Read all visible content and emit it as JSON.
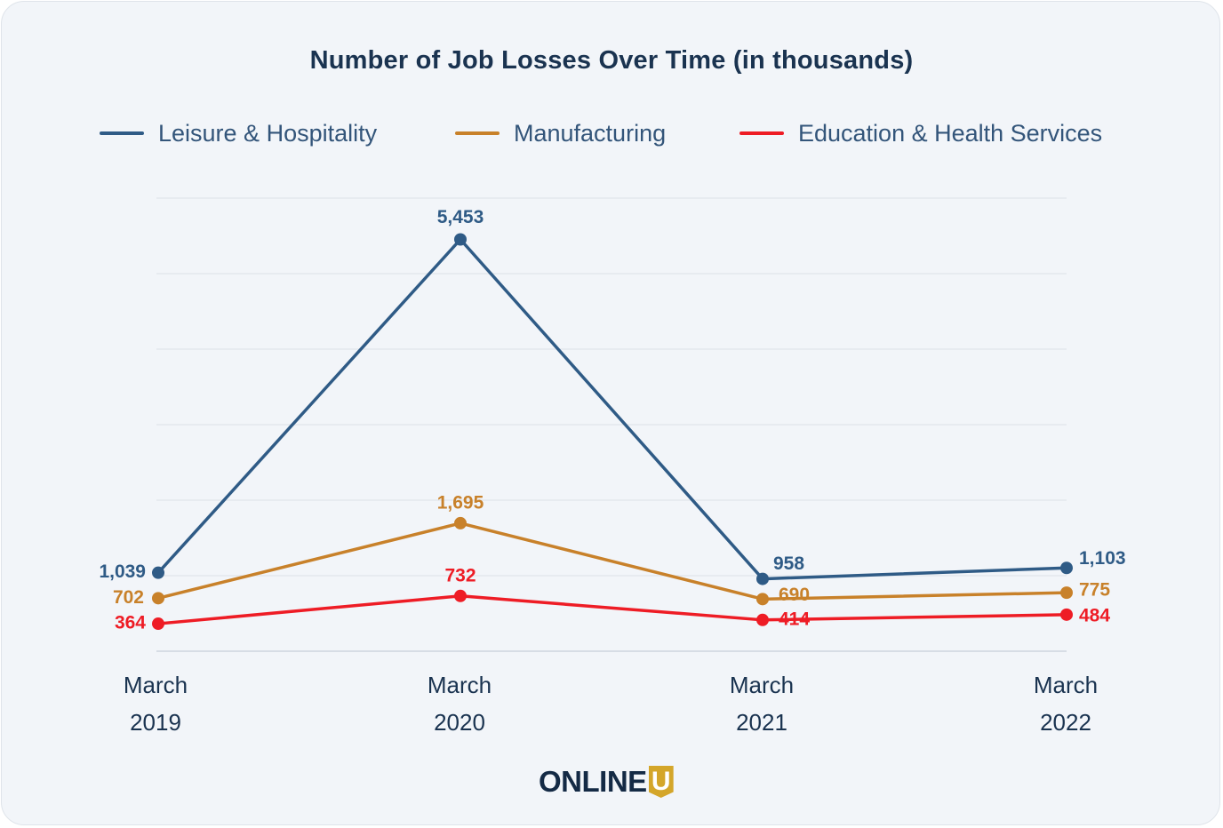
{
  "chart_data": {
    "type": "line",
    "title": "Number of Job Losses Over Time (in thousands)",
    "categories": [
      [
        "March",
        "2019"
      ],
      [
        "March",
        "2020"
      ],
      [
        "March",
        "2021"
      ],
      [
        "March",
        "2022"
      ]
    ],
    "series": [
      {
        "name": "Leisure & Hospitality",
        "color": "#2f5b86",
        "values": [
          1039,
          5453,
          958,
          1103
        ],
        "labels": [
          "1,039",
          "5,453",
          "958",
          "1,103"
        ]
      },
      {
        "name": "Manufacturing",
        "color": "#c8812a",
        "values": [
          702,
          1695,
          690,
          775
        ],
        "labels": [
          "702",
          "1,695",
          "690",
          "775"
        ]
      },
      {
        "name": "Education & Health Services",
        "color": "#ee1c25",
        "values": [
          364,
          732,
          414,
          484
        ],
        "labels": [
          "364",
          "732",
          "414",
          "484"
        ]
      }
    ],
    "ylim": [
      0,
      6000
    ],
    "grid": true,
    "legend_position": "top-center",
    "xlabel": "",
    "ylabel": ""
  },
  "branding": {
    "logo_text": "ONLINE",
    "logo_badge": "U"
  }
}
